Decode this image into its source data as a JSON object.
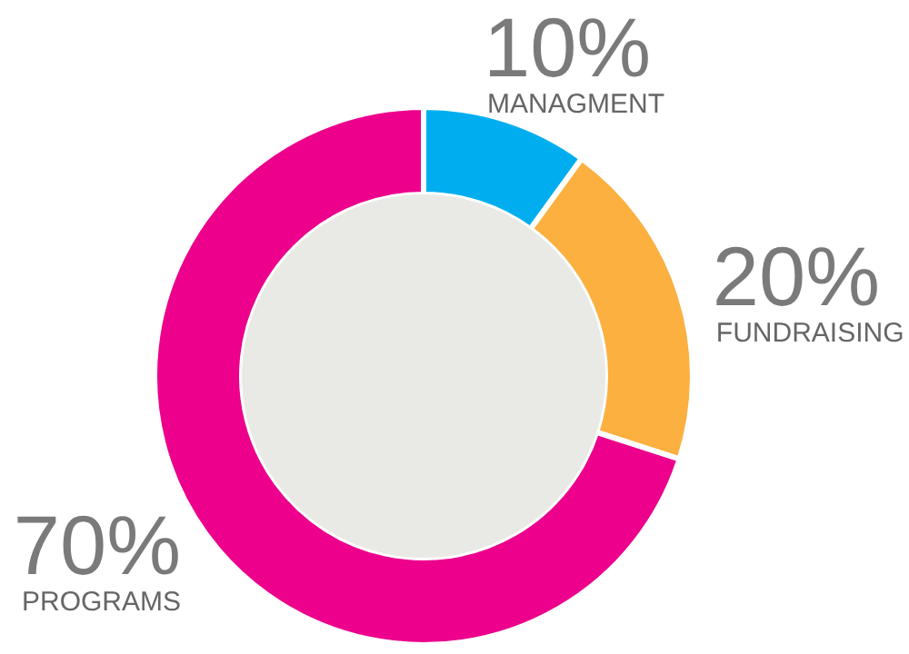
{
  "chart_data": {
    "type": "donut",
    "categories": [
      "MANAGMENT",
      "FUNDRAISING",
      "PROGRAMS"
    ],
    "values": [
      10,
      20,
      70
    ],
    "value_labels": [
      "10%",
      "20%",
      "70%"
    ],
    "colors": [
      "#00aeef",
      "#fbb040",
      "#ec008c"
    ]
  }
}
